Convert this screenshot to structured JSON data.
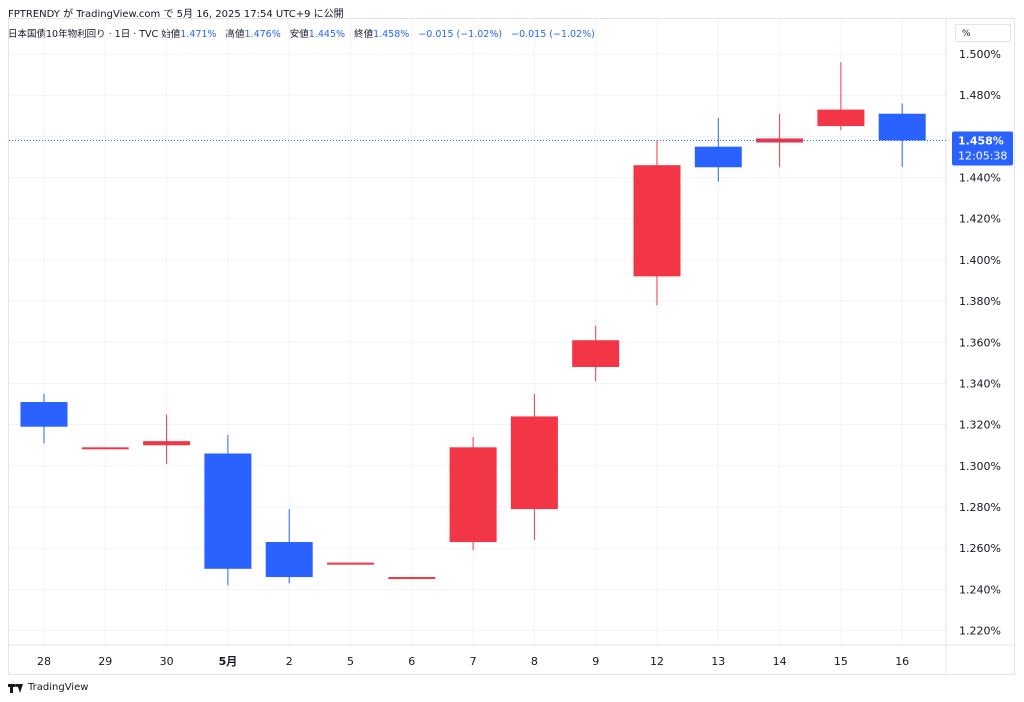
{
  "header": {
    "title": "FPTRENDY が TradingView.com で 5月 16, 2025 17:54 UTC+9 に公開"
  },
  "ohlc": {
    "symbol": "日本国債10年物利回り · 1日 · TVC",
    "open_label": "始値",
    "open_value": "1.471%",
    "high_label": "高値",
    "high_value": "1.476%",
    "low_label": "安値",
    "low_value": "1.445%",
    "close_label": "終値",
    "close_value": "1.458%",
    "change": "−0.015 (−1.02%)",
    "change2": "−0.015 (−1.02%)"
  },
  "unit_button": "%",
  "footer": {
    "brand": "TradingView"
  },
  "colors": {
    "up": "#f23645",
    "down": "#2962ff",
    "grid": "#f0f3fa",
    "axis_text": "#131722",
    "price_tag_bg": "#2962ff"
  },
  "chart_data": {
    "type": "candlestick",
    "y_ticks": [
      "1.220%",
      "1.240%",
      "1.260%",
      "1.280%",
      "1.300%",
      "1.320%",
      "1.340%",
      "1.360%",
      "1.380%",
      "1.400%",
      "1.420%",
      "1.440%",
      "1.460%",
      "1.480%",
      "1.500%"
    ],
    "ylim": [
      1.213,
      1.517
    ],
    "categories": [
      "28",
      "29",
      "30",
      "5月",
      "2",
      "5",
      "6",
      "7",
      "8",
      "9",
      "12",
      "13",
      "14",
      "15",
      "16"
    ],
    "bold_categories": [
      "5月"
    ],
    "candles": [
      {
        "x": "28",
        "open": 1.331,
        "high": 1.335,
        "low": 1.311,
        "close": 1.319
      },
      {
        "x": "29",
        "open": 1.309,
        "high": 1.309,
        "low": 1.309,
        "close": 1.309
      },
      {
        "x": "30",
        "open": 1.31,
        "high": 1.325,
        "low": 1.301,
        "close": 1.312
      },
      {
        "x": "5月",
        "open": 1.306,
        "high": 1.315,
        "low": 1.242,
        "close": 1.25
      },
      {
        "x": "2",
        "open": 1.263,
        "high": 1.279,
        "low": 1.243,
        "close": 1.246
      },
      {
        "x": "5",
        "open": 1.253,
        "high": 1.253,
        "low": 1.253,
        "close": 1.253
      },
      {
        "x": "6",
        "open": 1.246,
        "high": 1.246,
        "low": 1.246,
        "close": 1.246
      },
      {
        "x": "7",
        "open": 1.263,
        "high": 1.314,
        "low": 1.259,
        "close": 1.309
      },
      {
        "x": "8",
        "open": 1.279,
        "high": 1.335,
        "low": 1.264,
        "close": 1.324
      },
      {
        "x": "9",
        "open": 1.348,
        "high": 1.368,
        "low": 1.341,
        "close": 1.361
      },
      {
        "x": "12",
        "open": 1.392,
        "high": 1.458,
        "low": 1.378,
        "close": 1.446
      },
      {
        "x": "13",
        "open": 1.455,
        "high": 1.469,
        "low": 1.438,
        "close": 1.445
      },
      {
        "x": "14",
        "open": 1.457,
        "high": 1.471,
        "low": 1.445,
        "close": 1.459
      },
      {
        "x": "15",
        "open": 1.465,
        "high": 1.496,
        "low": 1.463,
        "close": 1.473
      },
      {
        "x": "16",
        "open": 1.471,
        "high": 1.476,
        "low": 1.445,
        "close": 1.458
      }
    ],
    "last_price": 1.458,
    "last_price_label": "1.458%",
    "countdown": "12:05:38"
  }
}
